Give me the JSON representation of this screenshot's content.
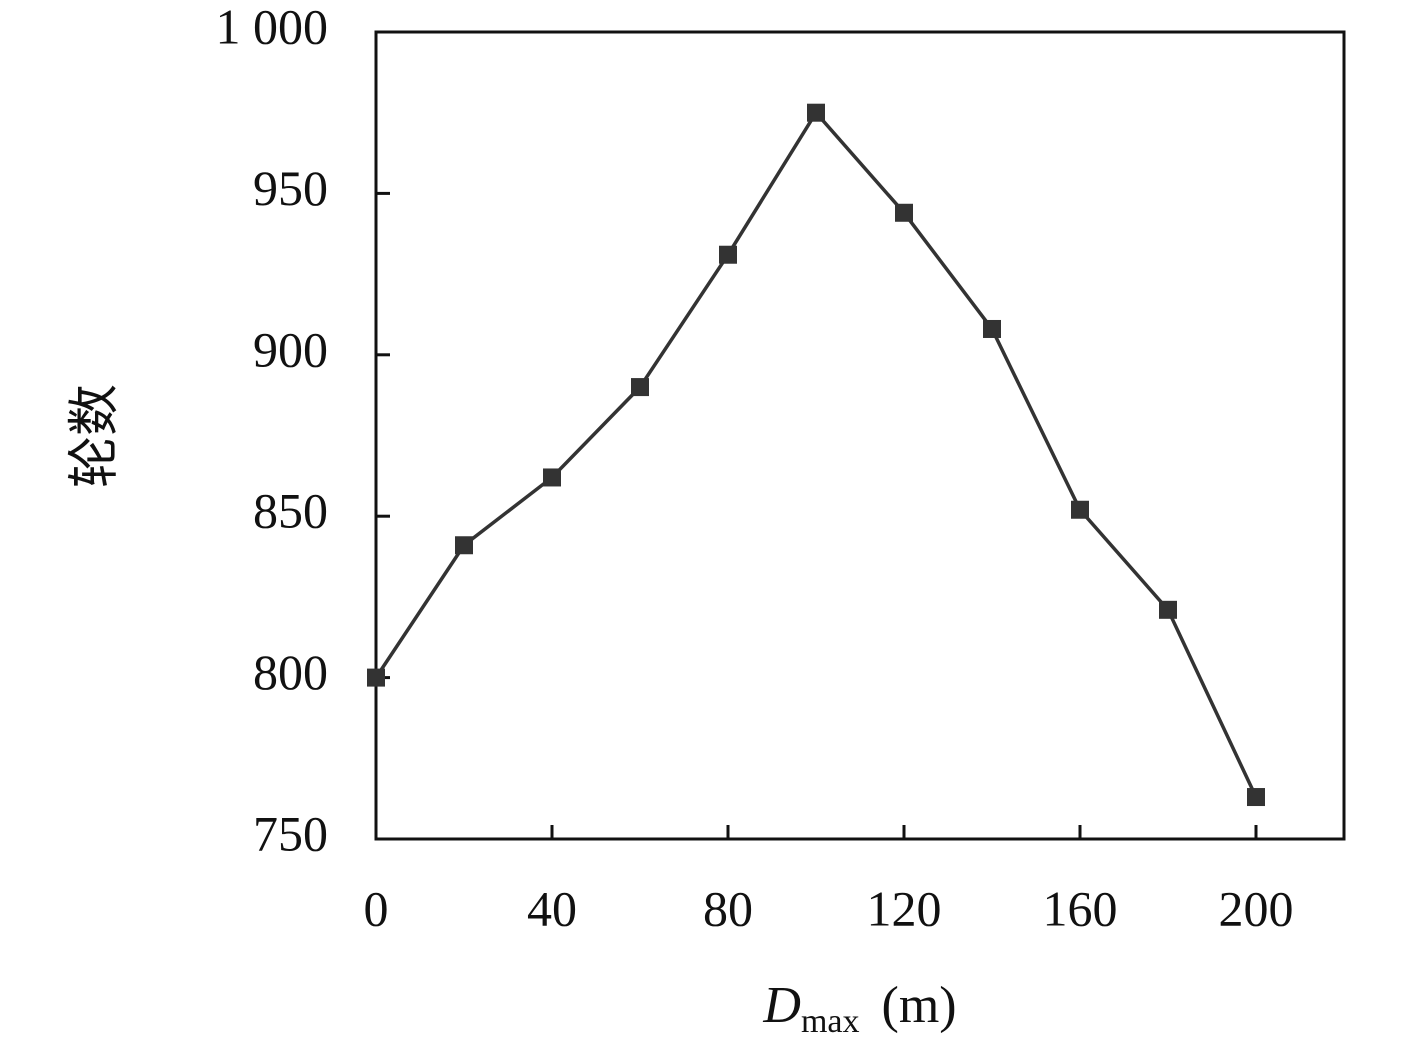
{
  "chart_data": {
    "type": "line",
    "y_label": "轮数",
    "x_label": "D",
    "x_label_sub": "max",
    "x_label_unit": "(m)",
    "x": [
      0,
      20,
      40,
      60,
      80,
      100,
      120,
      140,
      160,
      180,
      200
    ],
    "series": [
      {
        "name": "轮数",
        "color": "#333333",
        "values": [
          800,
          841,
          862,
          890,
          931,
          975,
          944,
          908,
          852,
          821,
          763
        ]
      }
    ],
    "xlim": [
      0,
      220
    ],
    "xticks": [
      0,
      40,
      80,
      120,
      160,
      200
    ],
    "ylim": [
      750,
      1000
    ],
    "yticks": [
      750,
      800,
      850,
      900,
      950,
      {
        "value": 1000,
        "label": "1 000"
      }
    ],
    "grid": false,
    "marker": "square"
  }
}
